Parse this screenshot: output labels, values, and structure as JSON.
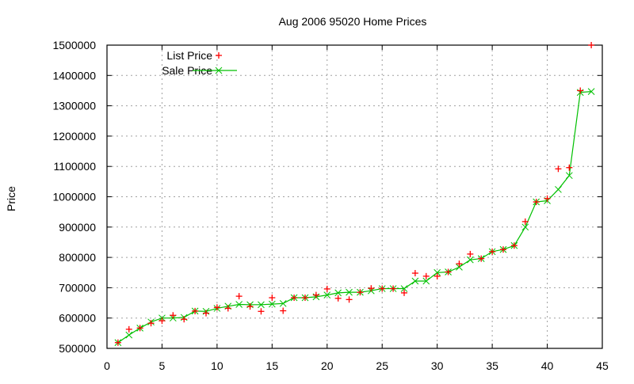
{
  "chart_data": {
    "type": "line",
    "title": "Aug 2006 95020 Home Prices",
    "xlabel": "",
    "ylabel": "Price",
    "xlim": [
      0,
      45
    ],
    "ylim": [
      500000,
      1500000
    ],
    "xticks": [
      0,
      5,
      10,
      15,
      20,
      25,
      30,
      35,
      40,
      45
    ],
    "yticks": [
      500000,
      600000,
      700000,
      800000,
      900000,
      1000000,
      1100000,
      1200000,
      1300000,
      1400000,
      1500000
    ],
    "grid": true,
    "legend_position": "top-left",
    "x": [
      1,
      2,
      3,
      4,
      5,
      6,
      7,
      8,
      9,
      10,
      11,
      12,
      13,
      14,
      15,
      16,
      17,
      18,
      19,
      20,
      21,
      22,
      23,
      24,
      25,
      26,
      27,
      28,
      29,
      30,
      31,
      32,
      33,
      34,
      35,
      36,
      37,
      38,
      39,
      40,
      41,
      42,
      43,
      44
    ],
    "series": [
      {
        "name": "List Price",
        "style": "points",
        "marker": "+",
        "color": "#ff0000",
        "values": [
          519000,
          563000,
          567000,
          583000,
          591000,
          609000,
          596000,
          623000,
          616000,
          635000,
          632000,
          672000,
          638000,
          622000,
          667000,
          624000,
          667000,
          667000,
          676000,
          696000,
          665000,
          661000,
          685000,
          698000,
          697000,
          697000,
          683000,
          748000,
          738000,
          738000,
          752000,
          779000,
          811000,
          796000,
          819000,
          826000,
          839000,
          918000,
          983000,
          994000,
          1092000,
          1096000,
          1350000,
          1500000
        ]
      },
      {
        "name": "Sale Price",
        "style": "linespoints",
        "marker": "x",
        "color": "#00c000",
        "values": [
          519000,
          544000,
          567000,
          587000,
          600000,
          600000,
          602000,
          623000,
          622000,
          632000,
          639000,
          645000,
          644000,
          644000,
          646000,
          648000,
          667000,
          667000,
          670000,
          676000,
          683000,
          685000,
          685000,
          690000,
          697000,
          697000,
          697000,
          722000,
          722000,
          750000,
          752000,
          768000,
          792000,
          796000,
          819000,
          826000,
          839000,
          900000,
          983000,
          987000,
          1024000,
          1070000,
          1344000,
          1347000
        ]
      }
    ]
  },
  "labels": {
    "title": "Aug 2006 95020 Home Prices",
    "ylabel": "Price",
    "legend_list": "List Price",
    "legend_sale": "Sale Price"
  },
  "colors": {
    "list": "#ff0000",
    "sale": "#00c000",
    "grid": "#a0a0a0",
    "axis": "#000000"
  }
}
